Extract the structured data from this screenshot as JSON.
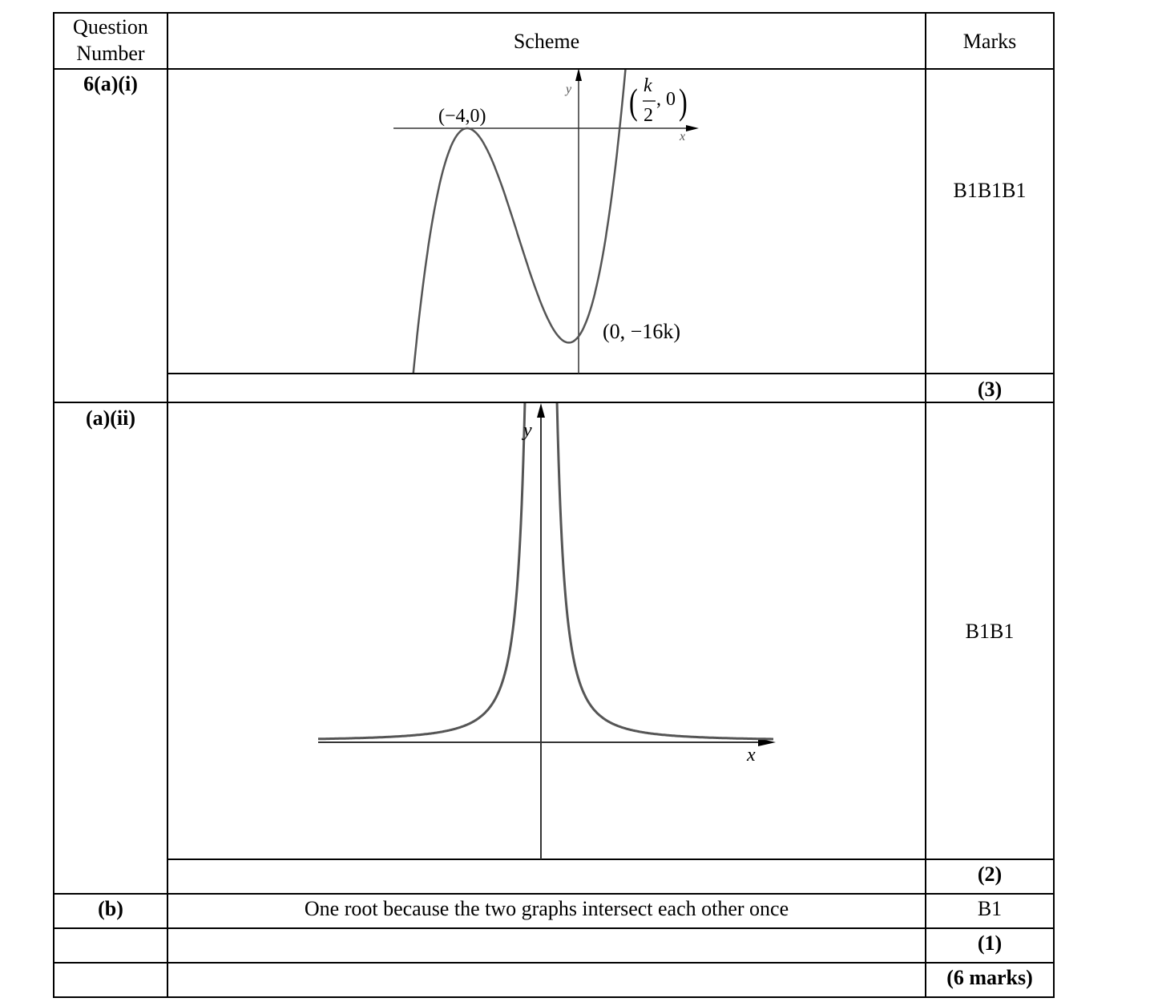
{
  "header": {
    "question_number": [
      "Question",
      "Number"
    ],
    "scheme": "Scheme",
    "marks": "Marks"
  },
  "rows": [
    {
      "question": "6(a)(i)",
      "marks": "B1B1B1",
      "subtotal": "(3)",
      "graph": {
        "x_axis": "x",
        "y_axis": "y",
        "max_point": "(−4,0)",
        "y_intercept": "(0, −16k)",
        "root_numerator": "k",
        "root_denominator": "2",
        "root_y": ", 0"
      }
    },
    {
      "question": "(a)(ii)",
      "marks": "B1B1",
      "subtotal": "(2)",
      "graph": {
        "x_axis": "x",
        "y_axis": "y"
      }
    },
    {
      "question": "(b)",
      "scheme": "One root because the two graphs intersect each other once",
      "marks": "B1",
      "subtotal": "(1)"
    }
  ],
  "total": "(6 marks)",
  "colors": {
    "curve": "#555555",
    "axis": "#333333"
  }
}
